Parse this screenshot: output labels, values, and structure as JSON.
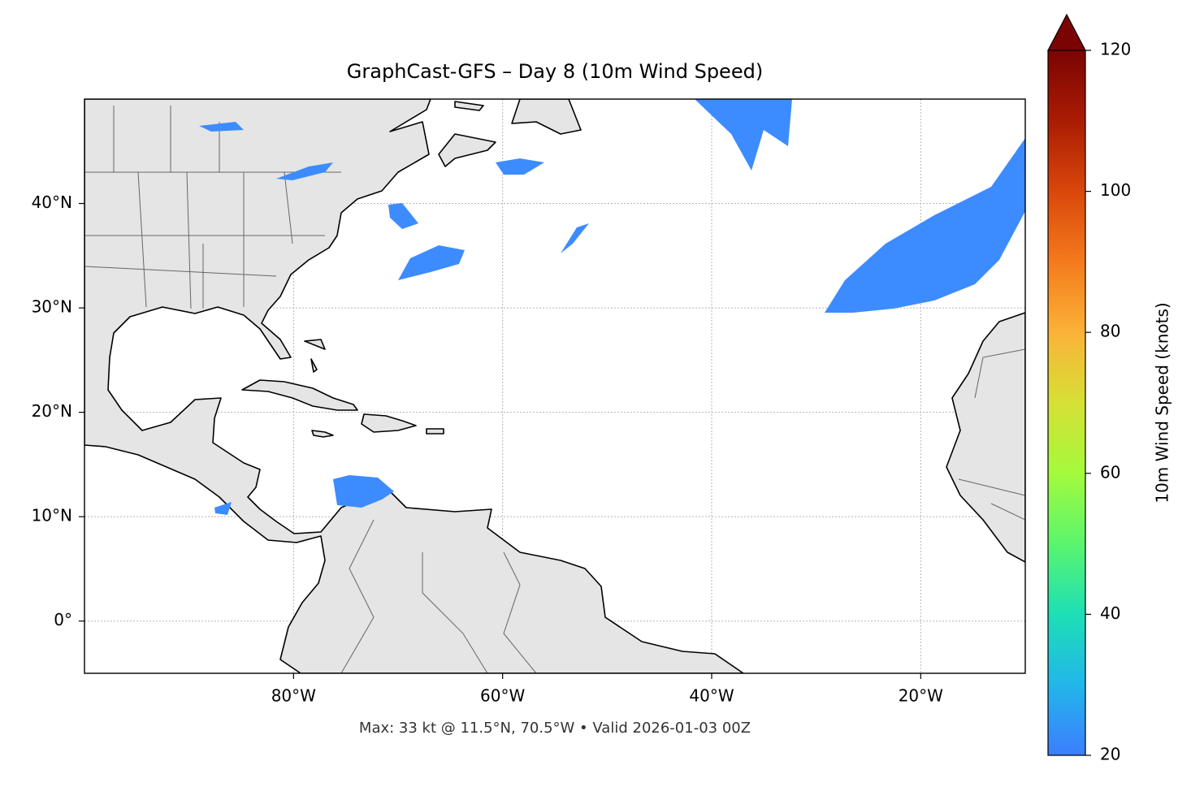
{
  "chart_data": {
    "type": "map",
    "title": "GraphCast-GFS – Day 8 (10m Wind Speed)",
    "footer": "Max: 33 kt @ 11.5°N, 70.5°W • Valid 2026-01-03 00Z",
    "xlim": [
      -100,
      -10
    ],
    "ylim": [
      -5,
      50
    ],
    "xticks": [
      {
        "value": -80,
        "label": "80°W"
      },
      {
        "value": -60,
        "label": "60°W"
      },
      {
        "value": -40,
        "label": "40°W"
      },
      {
        "value": -20,
        "label": "20°W"
      }
    ],
    "yticks": [
      {
        "value": 0,
        "label": "0°"
      },
      {
        "value": 10,
        "label": "10°N"
      },
      {
        "value": 20,
        "label": "20°N"
      },
      {
        "value": 30,
        "label": "30°N"
      },
      {
        "value": 40,
        "label": "40°N"
      }
    ],
    "grid": true,
    "colorbar": {
      "label": "10m Wind Speed (knots)",
      "lim": [
        20,
        120
      ],
      "ticks": [
        20,
        40,
        60,
        80,
        100,
        120
      ]
    }
  }
}
